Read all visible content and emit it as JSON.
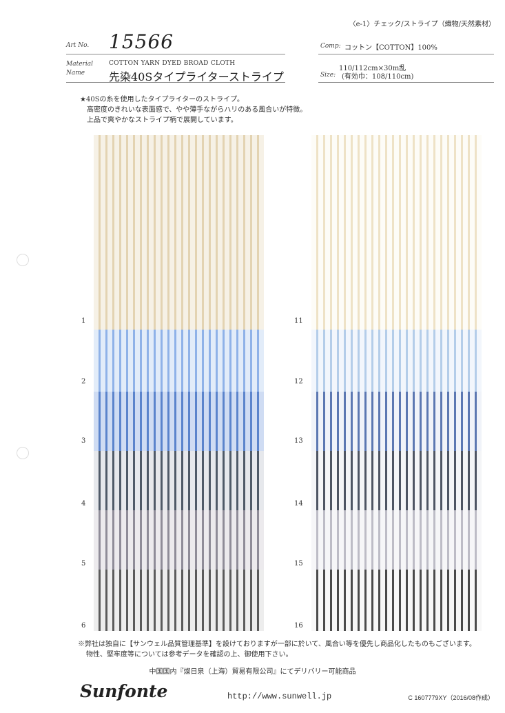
{
  "header": {
    "category": "〈e-1〉チェック/ストライプ（織物/天然素材）",
    "art_no_label": "Art No.",
    "art_no": "15566",
    "material_label": "Material",
    "name_label": "Name",
    "material_en": "COTTON YARN DYED BROAD CLOTH",
    "name_jp": "先染40Sタイプライターストライプ",
    "comp_label": "Comp:",
    "comp_value": "コットン【COTTON】100%",
    "width_length": "110/112cm×30m乱",
    "size_label": "Size:",
    "size_value": "(有効巾：108/110cm)"
  },
  "description": [
    "★40Sの糸を使用したタイプライターのストライプ。",
    "高密度のきれいな表面感で、やや薄手ながらハリのある風合いが特徴。",
    "上品で爽やかなストライプ柄で展開しています。"
  ],
  "swatches_left": [
    {
      "num": "1",
      "bg": "#f6f1e6",
      "stripe": "#e3d3b2"
    },
    {
      "num": "2",
      "bg": "#e2ecf9",
      "stripe": "#8fb2e8"
    },
    {
      "num": "3",
      "bg": "#cfdcf3",
      "stripe": "#5b84cc"
    },
    {
      "num": "4",
      "bg": "#e6e8ec",
      "stripe": "#4f5a68"
    },
    {
      "num": "5",
      "bg": "#eceaed",
      "stripe": "#8f8c98"
    },
    {
      "num": "6",
      "bg": "#ededed",
      "stripe": "#5b5b5b"
    }
  ],
  "swatches_right": [
    {
      "num": "11",
      "bg": "#fdfcf7",
      "stripe": "#eee2c6"
    },
    {
      "num": "12",
      "bg": "#f2f6fc",
      "stripe": "#b4cde9"
    },
    {
      "num": "13",
      "bg": "#f0f3f9",
      "stripe": "#5c78b2"
    },
    {
      "num": "14",
      "bg": "#f4f5f7",
      "stripe": "#4e5563"
    },
    {
      "num": "15",
      "bg": "#f6f6f8",
      "stripe": "#bdbcc6"
    },
    {
      "num": "16",
      "bg": "#f7f7f7",
      "stripe": "#4a4a4a"
    }
  ],
  "notes": [
    "※弊社は独自に【サンウェル品質管理基準】を設けておりますが一部に於いて、風合い等を優先し商品化したものもございます。",
    "物性、堅牢度等については参考データを確認の上、御使用下さい。"
  ],
  "delivery": "中国国内『燦日泉（上海）貿易有限公司』にてデリバリー可能商品",
  "logo": "Sunfonte",
  "url": "http://www.sunwell.jp",
  "code": "C 1607779XY（2016/08作成）"
}
